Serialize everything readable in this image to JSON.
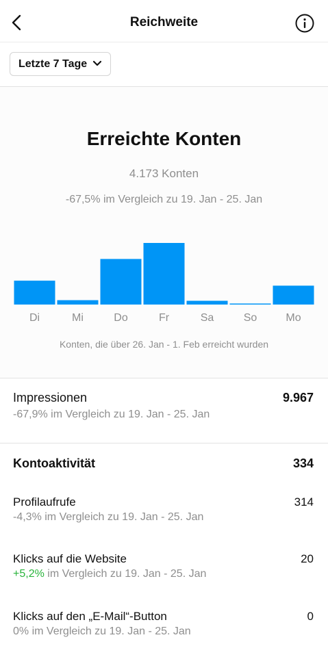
{
  "header": {
    "title": "Reichweite",
    "back_icon": "chevron-left-icon",
    "info_icon": "info-circle-icon"
  },
  "filter": {
    "label": "Letzte 7 Tage",
    "icon": "chevron-down-icon"
  },
  "reach": {
    "title": "Erreichte Konten",
    "count": "4.173 Konten",
    "comparison": "-67,5% im Vergleich zu 19. Jan - 25. Jan",
    "caption": "Konten, die über 26. Jan - 1. Feb erreicht wurden"
  },
  "chart_data": {
    "type": "bar",
    "categories": [
      "Di",
      "Mi",
      "Do",
      "Fr",
      "Sa",
      "So",
      "Mo"
    ],
    "values": [
      760,
      140,
      1450,
      1960,
      120,
      20,
      600
    ],
    "bar_color": "#0095f6"
  },
  "impressions": {
    "label": "Impressionen",
    "value": "9.967",
    "comparison": "-67,9% im Vergleich zu 19. Jan - 25. Jan"
  },
  "activity": {
    "label": "Kontoaktivität",
    "value": "334",
    "items": [
      {
        "label": "Profilaufrufe",
        "value": "314",
        "change": "-4,3%",
        "rest": " im Vergleich zu 19. Jan - 25. Jan"
      },
      {
        "label": "Klicks auf die Website",
        "value": "20",
        "change": "+5,2%",
        "rest": " im Vergleich zu 19. Jan - 25. Jan"
      },
      {
        "label": "Klicks auf den „E-Mail“-Button",
        "value": "0",
        "change": "0%",
        "rest": " im Vergleich zu 19. Jan - 25. Jan"
      }
    ]
  },
  "colors": {
    "accent": "#0095f6",
    "positive": "#2ab43c",
    "muted": "#8e8e8e"
  }
}
